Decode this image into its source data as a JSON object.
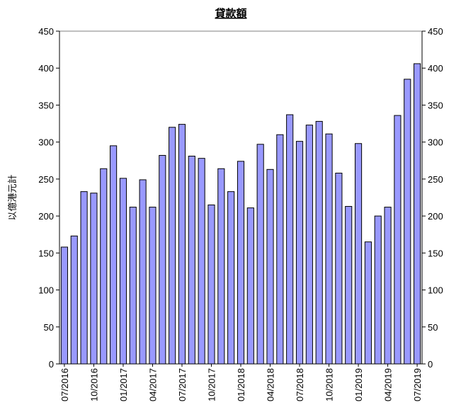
{
  "chart_data": {
    "type": "bar",
    "title": "貸款額",
    "y_label": "以億港元計",
    "categories": [
      "07/2016",
      null,
      null,
      "10/2016",
      null,
      null,
      "01/2017",
      null,
      null,
      "04/2017",
      null,
      null,
      "07/2017",
      null,
      null,
      "10/2017",
      null,
      null,
      "01/2018",
      null,
      null,
      "04/2018",
      null,
      null,
      "07/2018",
      null,
      null,
      "10/2018",
      null,
      null,
      "01/2019",
      null,
      null,
      "04/2019",
      null,
      null,
      "07/2019"
    ],
    "values": [
      158,
      173,
      233,
      231,
      264,
      295,
      251,
      212,
      249,
      212,
      282,
      320,
      324,
      281,
      278,
      215,
      264,
      233,
      274,
      211,
      297,
      263,
      310,
      337,
      301,
      323,
      328,
      311,
      258,
      213,
      298,
      165,
      200,
      212,
      336,
      385,
      406
    ],
    "color": "#9999ff",
    "ylim": [
      0,
      450
    ],
    "yticks": [
      0,
      50,
      100,
      150,
      200,
      250,
      300,
      350,
      400,
      450
    ],
    "y2lim": [
      0,
      450
    ],
    "y2ticks": [
      0,
      50,
      100,
      150,
      200,
      250,
      300,
      350,
      400,
      450
    ],
    "grid": false
  }
}
